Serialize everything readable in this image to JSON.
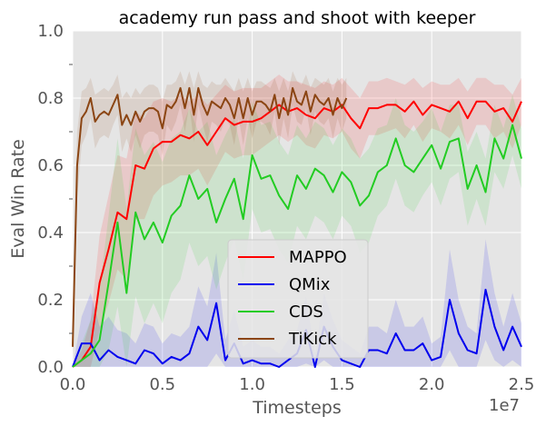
{
  "chart_data": {
    "type": "line",
    "title": "academy run pass and shoot with keeper",
    "xlabel": "Timesteps",
    "ylabel": "Eval Win Rate",
    "x_multiplier_label": "1e7",
    "xlim": [
      0,
      2.5
    ],
    "ylim": [
      0,
      1.0
    ],
    "x_ticks": [
      0.0,
      0.5,
      1.0,
      1.5,
      2.0,
      2.5
    ],
    "x_tick_labels": [
      "0.0",
      "0.5",
      "1.0",
      "1.5",
      "2.0",
      "2.5"
    ],
    "y_ticks": [
      0.0,
      0.2,
      0.4,
      0.6,
      0.8,
      1.0
    ],
    "y_tick_labels": [
      "0.0",
      "0.2",
      "0.4",
      "0.6",
      "0.8",
      "1.0"
    ],
    "grid": true,
    "legend_position": "lower-center",
    "series": [
      {
        "name": "MAPPO",
        "color": "#ff0000",
        "x": [
          0.0,
          0.05,
          0.1,
          0.15,
          0.2,
          0.25,
          0.3,
          0.35,
          0.4,
          0.45,
          0.5,
          0.55,
          0.6,
          0.65,
          0.7,
          0.75,
          0.8,
          0.85,
          0.9,
          0.95,
          1.0,
          1.05,
          1.1,
          1.15,
          1.2,
          1.25,
          1.3,
          1.35,
          1.4,
          1.45,
          1.5,
          1.55,
          1.6,
          1.65,
          1.7,
          1.75,
          1.8,
          1.85,
          1.9,
          1.95,
          2.0,
          2.05,
          2.1,
          2.15,
          2.2,
          2.25,
          2.3,
          2.35,
          2.4,
          2.45,
          2.5
        ],
        "y": [
          0.0,
          0.02,
          0.06,
          0.25,
          0.35,
          0.46,
          0.44,
          0.6,
          0.59,
          0.65,
          0.67,
          0.67,
          0.69,
          0.68,
          0.7,
          0.66,
          0.7,
          0.74,
          0.72,
          0.73,
          0.73,
          0.74,
          0.76,
          0.78,
          0.76,
          0.77,
          0.75,
          0.74,
          0.77,
          0.76,
          0.78,
          0.74,
          0.71,
          0.77,
          0.77,
          0.78,
          0.78,
          0.76,
          0.79,
          0.75,
          0.78,
          0.77,
          0.76,
          0.79,
          0.74,
          0.79,
          0.79,
          0.76,
          0.77,
          0.73,
          0.79
        ],
        "band": [
          0.0,
          0.03,
          0.08,
          0.14,
          0.16,
          0.17,
          0.18,
          0.16,
          0.15,
          0.14,
          0.13,
          0.12,
          0.12,
          0.11,
          0.11,
          0.12,
          0.11,
          0.1,
          0.1,
          0.1,
          0.1,
          0.09,
          0.09,
          0.09,
          0.09,
          0.08,
          0.09,
          0.09,
          0.08,
          0.08,
          0.08,
          0.09,
          0.09,
          0.08,
          0.08,
          0.08,
          0.07,
          0.08,
          0.07,
          0.08,
          0.07,
          0.07,
          0.08,
          0.07,
          0.08,
          0.07,
          0.07,
          0.08,
          0.07,
          0.08,
          0.07
        ]
      },
      {
        "name": "QMix",
        "color": "#0000ee",
        "x": [
          0.0,
          0.05,
          0.1,
          0.15,
          0.2,
          0.25,
          0.3,
          0.35,
          0.4,
          0.45,
          0.5,
          0.55,
          0.6,
          0.65,
          0.7,
          0.75,
          0.8,
          0.85,
          0.9,
          0.95,
          1.0,
          1.05,
          1.1,
          1.15,
          1.2,
          1.25,
          1.3,
          1.35,
          1.4,
          1.45,
          1.5,
          1.55,
          1.6,
          1.65,
          1.7,
          1.75,
          1.8,
          1.85,
          1.9,
          1.95,
          2.0,
          2.05,
          2.1,
          2.15,
          2.2,
          2.25,
          2.3,
          2.35,
          2.4,
          2.45,
          2.5
        ],
        "y": [
          0.0,
          0.07,
          0.07,
          0.02,
          0.05,
          0.03,
          0.02,
          0.01,
          0.05,
          0.04,
          0.01,
          0.03,
          0.02,
          0.04,
          0.12,
          0.08,
          0.19,
          0.02,
          0.07,
          0.01,
          0.02,
          0.01,
          0.01,
          0.0,
          0.02,
          0.04,
          0.11,
          0.0,
          0.12,
          0.06,
          0.02,
          0.01,
          0.0,
          0.05,
          0.05,
          0.04,
          0.1,
          0.05,
          0.05,
          0.07,
          0.02,
          0.03,
          0.2,
          0.1,
          0.05,
          0.04,
          0.23,
          0.12,
          0.05,
          0.12,
          0.06
        ],
        "band": [
          0.0,
          0.08,
          0.15,
          0.1,
          0.1,
          0.08,
          0.08,
          0.06,
          0.08,
          0.08,
          0.06,
          0.07,
          0.07,
          0.08,
          0.12,
          0.1,
          0.15,
          0.06,
          0.1,
          0.05,
          0.06,
          0.05,
          0.05,
          0.04,
          0.06,
          0.07,
          0.1,
          0.04,
          0.1,
          0.08,
          0.06,
          0.05,
          0.04,
          0.07,
          0.07,
          0.06,
          0.1,
          0.07,
          0.07,
          0.08,
          0.05,
          0.06,
          0.15,
          0.1,
          0.07,
          0.06,
          0.15,
          0.1,
          0.07,
          0.1,
          0.07
        ]
      },
      {
        "name": "CDS",
        "color": "#22cc22",
        "x": [
          0.0,
          0.05,
          0.1,
          0.15,
          0.2,
          0.25,
          0.3,
          0.35,
          0.4,
          0.45,
          0.5,
          0.55,
          0.6,
          0.65,
          0.7,
          0.75,
          0.8,
          0.85,
          0.9,
          0.95,
          1.0,
          1.05,
          1.1,
          1.15,
          1.2,
          1.25,
          1.3,
          1.35,
          1.4,
          1.45,
          1.5,
          1.55,
          1.6,
          1.65,
          1.7,
          1.75,
          1.8,
          1.85,
          1.9,
          1.95,
          2.0,
          2.05,
          2.1,
          2.15,
          2.2,
          2.25,
          2.3,
          2.35,
          2.4,
          2.45,
          2.5
        ],
        "y": [
          0.0,
          0.02,
          0.04,
          0.08,
          0.25,
          0.43,
          0.22,
          0.46,
          0.38,
          0.43,
          0.37,
          0.45,
          0.48,
          0.57,
          0.5,
          0.53,
          0.43,
          0.5,
          0.56,
          0.44,
          0.63,
          0.56,
          0.57,
          0.51,
          0.47,
          0.57,
          0.53,
          0.59,
          0.57,
          0.52,
          0.58,
          0.55,
          0.48,
          0.51,
          0.58,
          0.6,
          0.68,
          0.6,
          0.58,
          0.62,
          0.66,
          0.59,
          0.67,
          0.68,
          0.53,
          0.6,
          0.52,
          0.68,
          0.62,
          0.72,
          0.62
        ],
        "band": [
          0.0,
          0.05,
          0.1,
          0.15,
          0.2,
          0.25,
          0.25,
          0.25,
          0.25,
          0.24,
          0.24,
          0.23,
          0.22,
          0.2,
          0.2,
          0.2,
          0.2,
          0.19,
          0.18,
          0.18,
          0.16,
          0.16,
          0.16,
          0.16,
          0.16,
          0.15,
          0.15,
          0.14,
          0.14,
          0.14,
          0.13,
          0.13,
          0.14,
          0.14,
          0.13,
          0.12,
          0.12,
          0.12,
          0.12,
          0.11,
          0.11,
          0.11,
          0.11,
          0.1,
          0.11,
          0.1,
          0.1,
          0.1,
          0.09,
          0.09,
          0.09
        ]
      },
      {
        "name": "TiKick",
        "color": "#8b4513",
        "x": [
          0.0,
          0.025,
          0.05,
          0.075,
          0.1,
          0.125,
          0.15,
          0.175,
          0.2,
          0.225,
          0.25,
          0.275,
          0.3,
          0.325,
          0.35,
          0.375,
          0.4,
          0.425,
          0.45,
          0.475,
          0.5,
          0.525,
          0.55,
          0.575,
          0.6,
          0.625,
          0.65,
          0.675,
          0.7,
          0.725,
          0.75,
          0.775,
          0.8,
          0.825,
          0.85,
          0.875,
          0.9,
          0.925,
          0.95,
          0.975,
          1.0,
          1.025,
          1.05,
          1.075,
          1.1,
          1.125,
          1.15,
          1.175,
          1.2,
          1.225,
          1.25,
          1.275,
          1.3,
          1.325,
          1.35,
          1.375,
          1.4,
          1.425,
          1.45,
          1.475,
          1.5,
          1.525
        ],
        "y": [
          0.06,
          0.6,
          0.74,
          0.76,
          0.8,
          0.73,
          0.75,
          0.76,
          0.75,
          0.78,
          0.81,
          0.72,
          0.75,
          0.72,
          0.76,
          0.73,
          0.76,
          0.77,
          0.77,
          0.76,
          0.71,
          0.78,
          0.77,
          0.79,
          0.83,
          0.77,
          0.83,
          0.75,
          0.83,
          0.78,
          0.75,
          0.79,
          0.78,
          0.77,
          0.8,
          0.78,
          0.74,
          0.8,
          0.74,
          0.8,
          0.75,
          0.79,
          0.79,
          0.78,
          0.76,
          0.81,
          0.74,
          0.8,
          0.75,
          0.83,
          0.79,
          0.78,
          0.82,
          0.76,
          0.81,
          0.79,
          0.78,
          0.8,
          0.75,
          0.8,
          0.77,
          0.8
        ],
        "band": [
          0.05,
          0.1,
          0.08,
          0.07,
          0.06,
          0.08,
          0.07,
          0.07,
          0.07,
          0.06,
          0.06,
          0.08,
          0.07,
          0.08,
          0.07,
          0.08,
          0.07,
          0.07,
          0.07,
          0.07,
          0.08,
          0.06,
          0.07,
          0.06,
          0.05,
          0.07,
          0.05,
          0.08,
          0.05,
          0.06,
          0.08,
          0.06,
          0.06,
          0.07,
          0.06,
          0.06,
          0.08,
          0.06,
          0.08,
          0.06,
          0.07,
          0.06,
          0.06,
          0.06,
          0.07,
          0.05,
          0.08,
          0.06,
          0.07,
          0.05,
          0.06,
          0.06,
          0.05,
          0.07,
          0.05,
          0.06,
          0.06,
          0.06,
          0.07,
          0.06,
          0.07,
          0.06
        ]
      }
    ]
  }
}
